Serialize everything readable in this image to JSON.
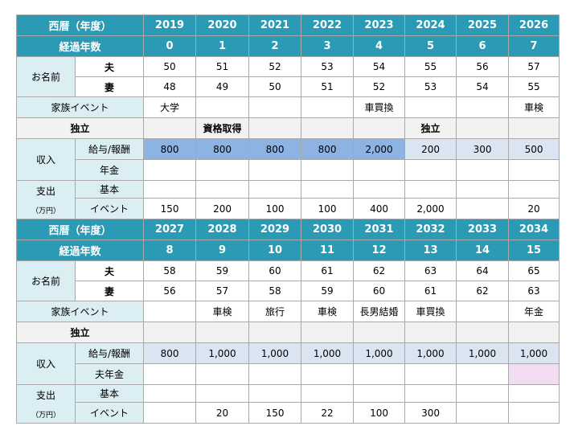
{
  "section1": {
    "year_label": "西暦（年度）",
    "years": [
      "2019",
      "2020",
      "2021",
      "2022",
      "2023",
      "2024",
      "2025",
      "2026"
    ],
    "elapsed_label": "経過年数",
    "elapsed": [
      "0",
      "1",
      "2",
      "3",
      "4",
      "5",
      "6",
      "7"
    ],
    "name_label": "お名前",
    "husband_label": "夫",
    "husband_ages": [
      "50",
      "51",
      "52",
      "53",
      "54",
      "55",
      "56",
      "57"
    ],
    "wife_label": "妻",
    "wife_ages": [
      "48",
      "49",
      "50",
      "51",
      "52",
      "53",
      "54",
      "55"
    ],
    "family_event_label": "家族イベント",
    "family_events": [
      "大学",
      "",
      "",
      "",
      "車買換",
      "",
      "",
      "車検"
    ],
    "independence_label": "独立",
    "independence": [
      "",
      "資格取得",
      "",
      "",
      "",
      "独立",
      "",
      ""
    ],
    "income_label": "収入",
    "salary_label": "給与/報酬",
    "salary": [
      "800",
      "800",
      "800",
      "800",
      "2,000",
      "200",
      "300",
      "500"
    ],
    "pension_label": "年金",
    "pension": [
      "",
      "",
      "",
      "",
      "",
      "",
      "",
      ""
    ],
    "expense_label": "支出",
    "expense_unit": "（万円）",
    "basic_label": "基本",
    "basic": [
      "",
      "",
      "",
      "",
      "",
      "",
      "",
      ""
    ],
    "event_label": "イベント",
    "events": [
      "150",
      "200",
      "100",
      "100",
      "400",
      "2,000",
      "",
      "20"
    ]
  },
  "section2": {
    "year_label": "西暦（年度）",
    "years": [
      "2027",
      "2028",
      "2029",
      "2030",
      "2031",
      "2032",
      "2033",
      "2034"
    ],
    "elapsed_label": "経過年数",
    "elapsed": [
      "8",
      "9",
      "10",
      "11",
      "12",
      "13",
      "14",
      "15"
    ],
    "name_label": "お名前",
    "husband_label": "夫",
    "husband_ages": [
      "58",
      "59",
      "60",
      "61",
      "62",
      "63",
      "64",
      "65"
    ],
    "wife_label": "妻",
    "wife_ages": [
      "56",
      "57",
      "58",
      "59",
      "60",
      "61",
      "62",
      "63"
    ],
    "family_event_label": "家族イベント",
    "family_events": [
      "",
      "車検",
      "旅行",
      "車検",
      "長男結婚",
      "車買換",
      "",
      "年金"
    ],
    "independence_label": "独立",
    "independence": [
      "",
      "",
      "",
      "",
      "",
      "",
      "",
      ""
    ],
    "income_label": "収入",
    "salary_label": "給与/報酬",
    "salary": [
      "800",
      "1,000",
      "1,000",
      "1,000",
      "1,000",
      "1,000",
      "1,000",
      "1,000"
    ],
    "pension_label": "夫年金",
    "pension": [
      "",
      "",
      "",
      "",
      "",
      "",
      "",
      ""
    ],
    "expense_label": "支出",
    "expense_unit": "（万円）",
    "basic_label": "基本",
    "basic": [
      "",
      "",
      "",
      "",
      "",
      "",
      "",
      ""
    ],
    "event_label": "イベント",
    "events": [
      "",
      "20",
      "150",
      "22",
      "100",
      "300",
      "",
      ""
    ]
  },
  "colors": {
    "header": "#2b9bb5",
    "label_cell": "#daeef3",
    "gray_row": "#f2f2f2",
    "salary_highlight": "#8db3e2",
    "salary_light": "#dbe5f1",
    "pension_pink": "#f2dcf2"
  }
}
